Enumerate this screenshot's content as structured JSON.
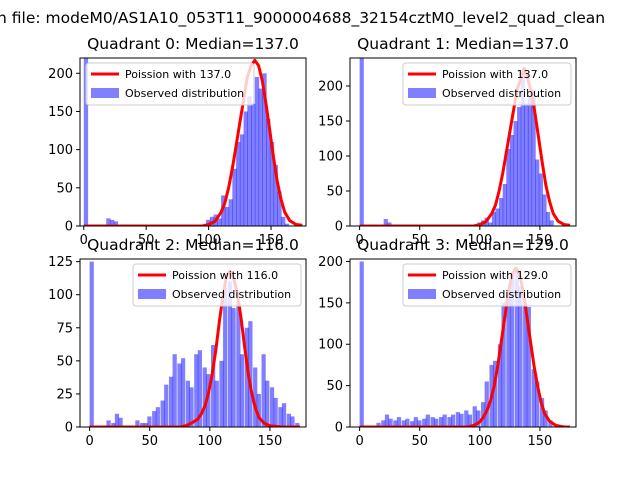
{
  "figure": {
    "suptitle": "n file: modeM0/AS1A10_053T11_9000004688_32154cztM0_level2_quad_clean"
  },
  "colors": {
    "hist": "#0000ff",
    "poisson": "#ff0000",
    "axes": "#000000"
  },
  "chart_data": [
    {
      "type": "bar",
      "title": "Quadrant 0: Median=137.0",
      "xlim": [
        -3,
        178
      ],
      "ylim": [
        0,
        220
      ],
      "xticks": [
        0,
        50,
        100,
        150
      ],
      "xtick_labels": [
        "0",
        "50",
        "100",
        "150"
      ],
      "yticks": [
        0,
        50,
        100,
        150,
        200
      ],
      "ytick_labels": [
        "0",
        "50",
        "100",
        "150",
        "200"
      ],
      "legend": {
        "position": "upper",
        "items": [
          "Poission with 137.0",
          "Observed distribution"
        ]
      },
      "series": [
        {
          "name": "Observed distribution",
          "kind": "hist",
          "bin_width": 3.5,
          "bins": [
            [
              0,
              220
            ],
            [
              18,
              10
            ],
            [
              21,
              8
            ],
            [
              24,
              6
            ],
            [
              98,
              8
            ],
            [
              101,
              12
            ],
            [
              104,
              15
            ],
            [
              107,
              10
            ],
            [
              110,
              40
            ],
            [
              113,
              25
            ],
            [
              116,
              35
            ],
            [
              119,
              75
            ],
            [
              122,
              110
            ],
            [
              125,
              120
            ],
            [
              128,
              150
            ],
            [
              131,
              170
            ],
            [
              134,
              160
            ],
            [
              137,
              195
            ],
            [
              140,
              180
            ],
            [
              143,
              200
            ],
            [
              146,
              140
            ],
            [
              149,
              110
            ],
            [
              152,
              80
            ],
            [
              155,
              45
            ],
            [
              158,
              12
            ],
            [
              161,
              3
            ]
          ]
        },
        {
          "name": "Poission with 137.0",
          "kind": "line",
          "x": [
            0,
            95,
            100,
            105,
            110,
            113,
            116,
            119,
            122,
            125,
            128,
            131,
            134,
            137,
            140,
            143,
            146,
            149,
            152,
            155,
            158,
            161,
            165,
            170,
            175
          ],
          "y": [
            0,
            0,
            2,
            6,
            18,
            30,
            50,
            75,
            105,
            135,
            165,
            195,
            210,
            217,
            210,
            190,
            160,
            125,
            90,
            58,
            35,
            18,
            7,
            2,
            1
          ]
        }
      ]
    },
    {
      "type": "bar",
      "title": "Quadrant 1: Median=137.0",
      "xlim": [
        -8,
        180
      ],
      "ylim": [
        0,
        240
      ],
      "xticks": [
        0,
        50,
        100,
        150
      ],
      "xtick_labels": [
        "0",
        "50",
        "100",
        "150"
      ],
      "yticks": [
        0,
        50,
        100,
        150,
        200
      ],
      "ytick_labels": [
        "0",
        "50",
        "100",
        "150",
        "200"
      ],
      "legend": {
        "position": "upper-right",
        "items": [
          "Poission with 137.0",
          "Observed distribution"
        ]
      },
      "series": [
        {
          "name": "Observed distribution",
          "kind": "hist",
          "bin_width": 3.5,
          "bins": [
            [
              0,
              240
            ],
            [
              20,
              10
            ],
            [
              23,
              5
            ],
            [
              98,
              5
            ],
            [
              101,
              8
            ],
            [
              104,
              12
            ],
            [
              107,
              5
            ],
            [
              110,
              20
            ],
            [
              113,
              25
            ],
            [
              116,
              40
            ],
            [
              119,
              60
            ],
            [
              122,
              110
            ],
            [
              125,
              130
            ],
            [
              128,
              150
            ],
            [
              131,
              170
            ],
            [
              134,
              220
            ],
            [
              137,
              175
            ],
            [
              140,
              185
            ],
            [
              143,
              195
            ],
            [
              146,
              95
            ],
            [
              149,
              75
            ],
            [
              152,
              45
            ],
            [
              155,
              20
            ],
            [
              158,
              8
            ]
          ]
        },
        {
          "name": "Poission with 137.0",
          "kind": "line",
          "x": [
            0,
            95,
            100,
            105,
            110,
            113,
            116,
            119,
            122,
            125,
            128,
            131,
            134,
            137,
            140,
            143,
            146,
            149,
            152,
            155,
            158,
            161,
            165,
            170,
            175
          ],
          "y": [
            0,
            0,
            2,
            6,
            18,
            30,
            50,
            75,
            105,
            135,
            165,
            195,
            210,
            225,
            210,
            190,
            160,
            125,
            90,
            58,
            35,
            18,
            7,
            2,
            1
          ]
        }
      ]
    },
    {
      "type": "bar",
      "title": "Quadrant 2: Median=116.0",
      "xlim": [
        -8,
        180
      ],
      "ylim": [
        0,
        127
      ],
      "xticks": [
        0,
        50,
        100,
        150
      ],
      "xtick_labels": [
        "0",
        "50",
        "100",
        "150"
      ],
      "yticks": [
        0,
        25,
        50,
        75,
        100,
        125
      ],
      "ytick_labels": [
        "0",
        "25",
        "50",
        "75",
        "100",
        "125"
      ],
      "legend": {
        "position": "upper-right",
        "items": [
          "Poission with 116.0",
          "Observed distribution"
        ]
      },
      "series": [
        {
          "name": "Observed distribution",
          "kind": "hist",
          "bin_width": 3.5,
          "bins": [
            [
              0,
              125
            ],
            [
              14,
              5
            ],
            [
              18,
              3
            ],
            [
              21,
              10
            ],
            [
              24,
              7
            ],
            [
              38,
              5
            ],
            [
              42,
              3
            ],
            [
              45,
              3
            ],
            [
              48,
              8
            ],
            [
              52,
              12
            ],
            [
              55,
              15
            ],
            [
              59,
              20
            ],
            [
              62,
              32
            ],
            [
              66,
              38
            ],
            [
              69,
              55
            ],
            [
              73,
              48
            ],
            [
              76,
              52
            ],
            [
              80,
              35
            ],
            [
              83,
              30
            ],
            [
              87,
              55
            ],
            [
              90,
              58
            ],
            [
              94,
              45
            ],
            [
              97,
              40
            ],
            [
              101,
              62
            ],
            [
              104,
              35
            ],
            [
              108,
              50
            ],
            [
              111,
              105
            ],
            [
              115,
              110
            ],
            [
              118,
              90
            ],
            [
              122,
              95
            ],
            [
              125,
              55
            ],
            [
              129,
              75
            ],
            [
              132,
              80
            ],
            [
              136,
              45
            ],
            [
              139,
              25
            ],
            [
              143,
              55
            ],
            [
              146,
              35
            ],
            [
              150,
              30
            ],
            [
              153,
              22
            ],
            [
              157,
              15
            ],
            [
              160,
              18
            ],
            [
              164,
              10
            ],
            [
              167,
              8
            ],
            [
              171,
              3
            ]
          ]
        },
        {
          "name": "Poission with 116.0",
          "kind": "line",
          "x": [
            0,
            75,
            80,
            85,
            90,
            93,
            96,
            99,
            102,
            105,
            108,
            111,
            114,
            117,
            120,
            123,
            126,
            129,
            132,
            135,
            138,
            141,
            145,
            150,
            160,
            175
          ],
          "y": [
            0,
            0,
            1,
            3,
            6,
            10,
            16,
            26,
            40,
            58,
            80,
            100,
            115,
            118,
            112,
            100,
            82,
            60,
            40,
            25,
            14,
            7,
            3,
            1,
            0,
            0
          ]
        }
      ]
    },
    {
      "type": "bar",
      "title": "Quadrant 3: Median=129.0",
      "xlim": [
        -8,
        180
      ],
      "ylim": [
        0,
        203
      ],
      "xticks": [
        0,
        50,
        100,
        150
      ],
      "xtick_labels": [
        "0",
        "50",
        "100",
        "150"
      ],
      "yticks": [
        0,
        50,
        100,
        150,
        200
      ],
      "ytick_labels": [
        "0",
        "50",
        "100",
        "150",
        "200"
      ],
      "legend": {
        "position": "upper-right",
        "items": [
          "Poission with 129.0",
          "Observed distribution"
        ]
      },
      "series": [
        {
          "name": "Observed distribution",
          "kind": "hist",
          "bin_width": 3.5,
          "bins": [
            [
              0,
              200
            ],
            [
              14,
              5
            ],
            [
              18,
              8
            ],
            [
              21,
              15
            ],
            [
              24,
              10
            ],
            [
              28,
              8
            ],
            [
              31,
              12
            ],
            [
              35,
              8
            ],
            [
              38,
              10
            ],
            [
              42,
              7
            ],
            [
              45,
              12
            ],
            [
              48,
              8
            ],
            [
              52,
              10
            ],
            [
              55,
              15
            ],
            [
              59,
              12
            ],
            [
              62,
              10
            ],
            [
              66,
              12
            ],
            [
              69,
              15
            ],
            [
              73,
              12
            ],
            [
              76,
              15
            ],
            [
              80,
              18
            ],
            [
              83,
              16
            ],
            [
              87,
              20
            ],
            [
              90,
              15
            ],
            [
              94,
              25
            ],
            [
              97,
              20
            ],
            [
              101,
              30
            ],
            [
              104,
              55
            ],
            [
              108,
              75
            ],
            [
              111,
              80
            ],
            [
              115,
              100
            ],
            [
              118,
              150
            ],
            [
              122,
              160
            ],
            [
              125,
              185
            ],
            [
              129,
              190
            ],
            [
              132,
              170
            ],
            [
              136,
              150
            ],
            [
              139,
              145
            ],
            [
              143,
              70
            ],
            [
              146,
              55
            ],
            [
              150,
              35
            ],
            [
              153,
              20
            ],
            [
              157,
              8
            ]
          ]
        },
        {
          "name": "Poission with 129.0",
          "kind": "line",
          "x": [
            0,
            90,
            95,
            100,
            103,
            106,
            109,
            112,
            115,
            118,
            121,
            124,
            127,
            130,
            133,
            136,
            139,
            142,
            145,
            148,
            151,
            154,
            158,
            163,
            170,
            175
          ],
          "y": [
            0,
            0,
            2,
            6,
            12,
            20,
            32,
            50,
            75,
            105,
            135,
            165,
            185,
            192,
            185,
            165,
            135,
            105,
            75,
            50,
            30,
            16,
            7,
            2,
            0,
            0
          ]
        }
      ]
    }
  ]
}
